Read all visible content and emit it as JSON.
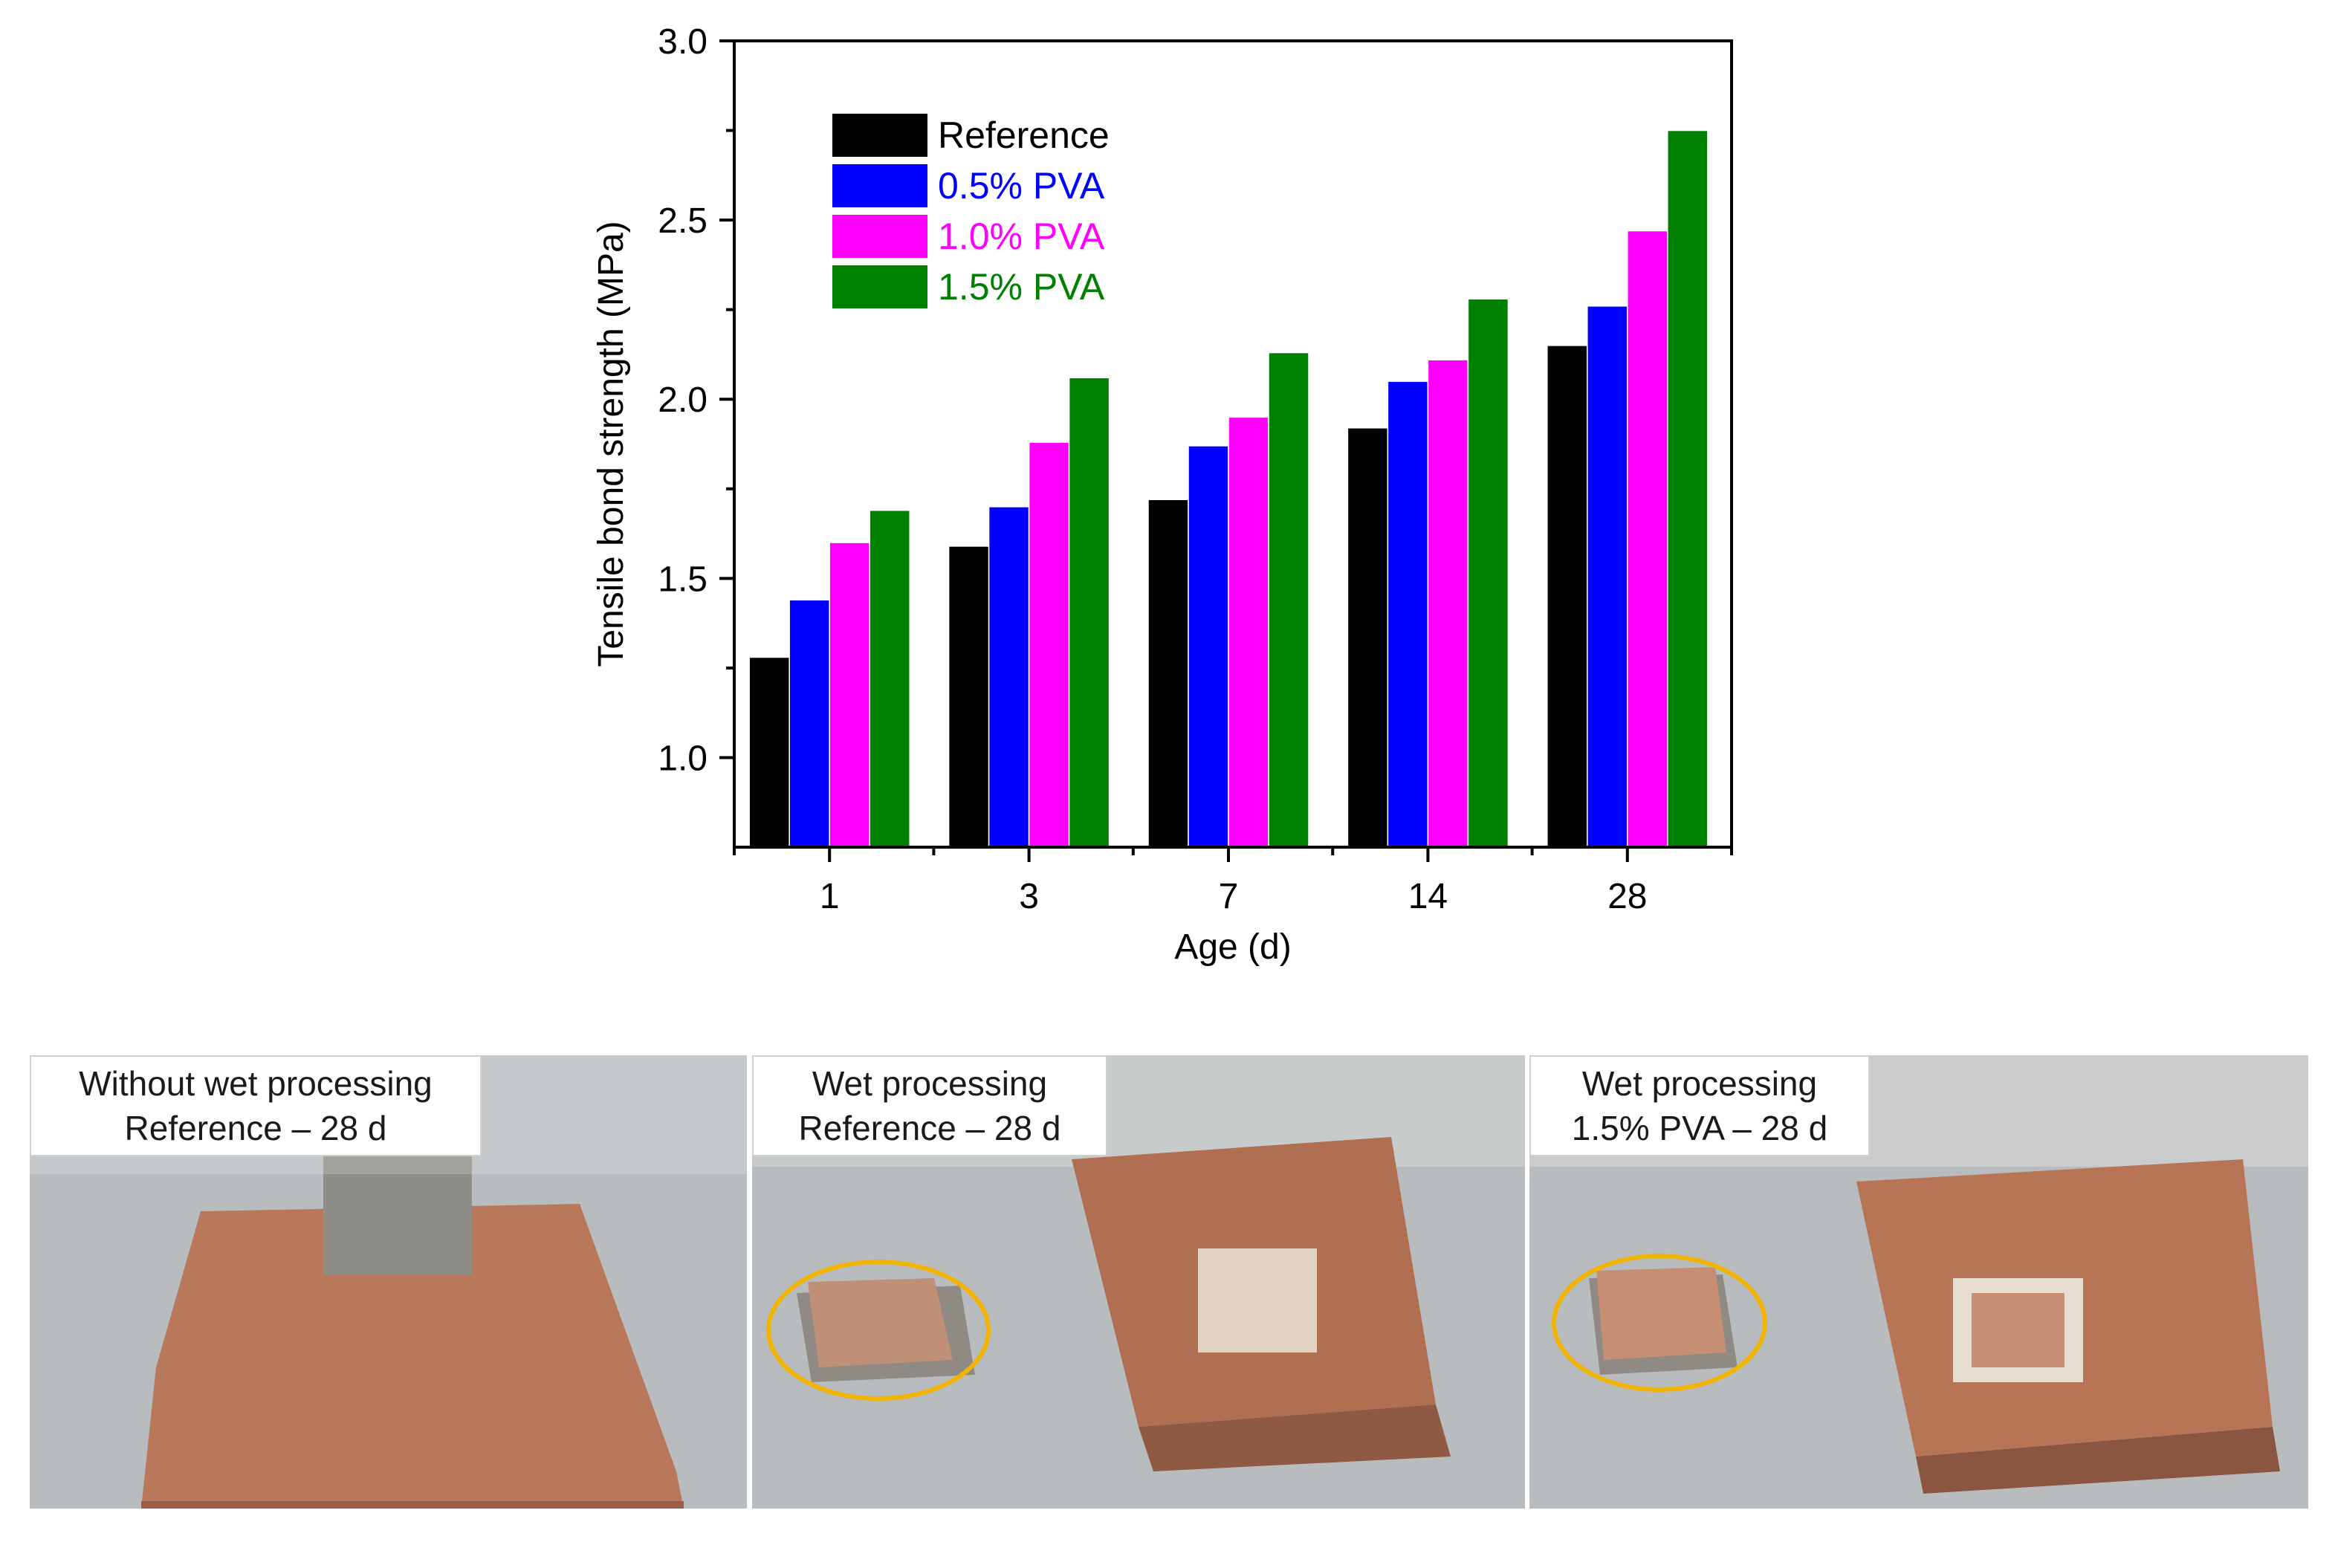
{
  "chart_data": {
    "type": "bar",
    "categories": [
      "1",
      "3",
      "7",
      "14",
      "28"
    ],
    "series": [
      {
        "name": "Reference",
        "color": "#000000",
        "values": [
          1.28,
          1.59,
          1.72,
          1.92,
          2.15
        ]
      },
      {
        "name": "0.5% PVA",
        "color": "#0000ff",
        "values": [
          1.44,
          1.7,
          1.87,
          2.05,
          2.26
        ]
      },
      {
        "name": "1.0% PVA",
        "color": "#ff00ff",
        "values": [
          1.6,
          1.88,
          1.95,
          2.11,
          2.47
        ]
      },
      {
        "name": "1.5% PVA",
        "color": "#008000",
        "values": [
          1.69,
          2.06,
          2.13,
          2.28,
          2.75
        ]
      }
    ],
    "xlabel": "Age (d)",
    "ylabel": "Tensile bond strength (MPa)",
    "ylim": [
      0.75,
      3.0
    ],
    "yticks": [
      1.0,
      1.5,
      2.0,
      2.5,
      3.0
    ],
    "ytick_labels": [
      "1.0",
      "1.5",
      "2.0",
      "2.5",
      "3.0"
    ],
    "legend_position": "top-left"
  },
  "photos": [
    {
      "line1": "Without wet processing",
      "line2": "Reference – 28 d"
    },
    {
      "line1": "Wet processing",
      "line2": "Reference – 28 d"
    },
    {
      "line1": "Wet processing",
      "line2": "1.5% PVA – 28 d"
    }
  ],
  "colors": {
    "highlight_ring": "#f2b400",
    "brick": "#b9785a",
    "floor": "#b8bcbf"
  }
}
